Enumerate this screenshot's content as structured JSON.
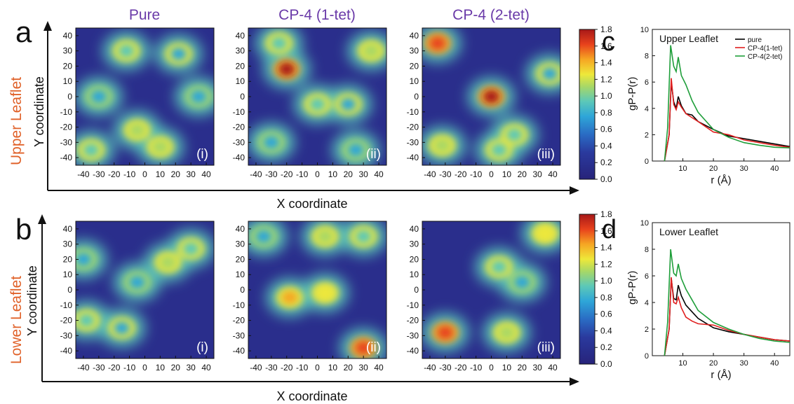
{
  "figure": {
    "panel_letters": [
      "a",
      "b",
      "c",
      "d"
    ],
    "column_titles": [
      "Pure",
      "CP-4 (1-tet)",
      "CP-4 (2-tet)"
    ],
    "row_labels": [
      "Upper Leaflet",
      "Lower Leaflet"
    ],
    "subpanel_tags": [
      "(i)",
      "(ii)",
      "(iii)"
    ],
    "y_axis_label": "Y coordinate",
    "x_axis_label": "X coordinate",
    "colors": {
      "title": "#6a3aa8",
      "row_label": "#e0622a",
      "pure": "#000000",
      "one_tet": "#e02020",
      "two_tet": "#1f9e3a"
    }
  },
  "heatmap_ticks": {
    "x": [
      "-40",
      "-30",
      "-20",
      "-10",
      "0",
      "10",
      "20",
      "30",
      "40"
    ],
    "y": [
      "40",
      "30",
      "20",
      "10",
      "0",
      "-10",
      "-20",
      "-30",
      "-40"
    ]
  },
  "colorbar": {
    "ticks": [
      "1.8",
      "1.6",
      "1.4",
      "1.2",
      "1.0",
      "0.8",
      "0.6",
      "0.4",
      "0.2",
      "0.0"
    ],
    "range": [
      0,
      1.8
    ]
  },
  "chart_data": [
    {
      "type": "heatmap",
      "panel": "a",
      "row": "Upper Leaflet",
      "xlim": [
        -45,
        45
      ],
      "ylim": [
        -45,
        45
      ],
      "maps": [
        {
          "title": "Pure",
          "tag": "(i)",
          "hotspots": [
            [
              -5,
              -22,
              0.95
            ],
            [
              10,
              -33,
              1.0
            ],
            [
              -35,
              -35,
              0.9
            ],
            [
              -12,
              30,
              0.8
            ],
            [
              22,
              28,
              0.7
            ],
            [
              35,
              0,
              0.6
            ],
            [
              -30,
              0,
              0.6
            ]
          ]
        },
        {
          "title": "CP-4 (1-tet)",
          "tag": "(ii)",
          "hotspots": [
            [
              -20,
              18,
              1.8
            ],
            [
              -25,
              35,
              0.9
            ],
            [
              35,
              30,
              1.0
            ],
            [
              0,
              -5,
              0.8
            ],
            [
              20,
              -5,
              0.7
            ],
            [
              -30,
              -30,
              0.6
            ],
            [
              25,
              -35,
              0.6
            ]
          ]
        },
        {
          "title": "CP-4 (2-tet)",
          "tag": "(iii)",
          "hotspots": [
            [
              -35,
              35,
              1.6
            ],
            [
              0,
              0,
              1.7
            ],
            [
              -32,
              -32,
              1.0
            ],
            [
              15,
              -25,
              0.9
            ],
            [
              38,
              15,
              0.7
            ],
            [
              5,
              -35,
              0.9
            ]
          ]
        }
      ]
    },
    {
      "type": "heatmap",
      "panel": "b",
      "row": "Lower Leaflet",
      "xlim": [
        -45,
        45
      ],
      "ylim": [
        -45,
        45
      ],
      "maps": [
        {
          "title": "Pure",
          "tag": "(i)",
          "hotspots": [
            [
              15,
              18,
              1.0
            ],
            [
              30,
              27,
              0.9
            ],
            [
              -38,
              -20,
              0.9
            ],
            [
              -15,
              -25,
              0.7
            ],
            [
              -5,
              5,
              0.6
            ],
            [
              -40,
              20,
              0.6
            ]
          ]
        },
        {
          "title": "CP-4 (1-tet)",
          "tag": "(ii)",
          "hotspots": [
            [
              -18,
              -5,
              1.3
            ],
            [
              5,
              -2,
              1.2
            ],
            [
              30,
              -38,
              1.5
            ],
            [
              5,
              35,
              1.0
            ],
            [
              30,
              35,
              0.9
            ],
            [
              -35,
              35,
              0.6
            ]
          ]
        },
        {
          "title": "CP-4 (2-tet)",
          "tag": "(iii)",
          "hotspots": [
            [
              -30,
              -28,
              1.5
            ],
            [
              10,
              -28,
              1.0
            ],
            [
              35,
              37,
              1.2
            ],
            [
              5,
              15,
              0.8
            ],
            [
              20,
              5,
              0.6
            ]
          ]
        }
      ]
    },
    {
      "type": "line",
      "panel": "c",
      "title": "Upper Leaflet",
      "xlabel": "r (Å)",
      "ylabel": "gP-P(r)",
      "xlim": [
        0,
        45
      ],
      "ylim": [
        0,
        10
      ],
      "xticks": [
        "10",
        "20",
        "30",
        "40"
      ],
      "yticks": [
        "0",
        "2",
        "4",
        "6",
        "8",
        "10"
      ],
      "series": [
        {
          "name": "pure",
          "color": "#000000",
          "points": [
            [
              4,
              0
            ],
            [
              5.5,
              2
            ],
            [
              6.2,
              6.0
            ],
            [
              7,
              4.5
            ],
            [
              7.8,
              4.0
            ],
            [
              8.5,
              4.9
            ],
            [
              9.5,
              4.2
            ],
            [
              11,
              3.6
            ],
            [
              13,
              3.5
            ],
            [
              15,
              3.0
            ],
            [
              20,
              2.4
            ],
            [
              25,
              1.9
            ],
            [
              30,
              1.7
            ],
            [
              35,
              1.5
            ],
            [
              40,
              1.3
            ],
            [
              45,
              1.1
            ]
          ]
        },
        {
          "name": "CP-4(1-tet)",
          "color": "#e02020",
          "points": [
            [
              4,
              0
            ],
            [
              5.5,
              2
            ],
            [
              6.2,
              6.3
            ],
            [
              7,
              4.3
            ],
            [
              7.8,
              3.9
            ],
            [
              8.5,
              4.5
            ],
            [
              9.5,
              4.1
            ],
            [
              11,
              3.6
            ],
            [
              13,
              3.3
            ],
            [
              15,
              3.0
            ],
            [
              20,
              2.2
            ],
            [
              25,
              2.0
            ],
            [
              30,
              1.6
            ],
            [
              35,
              1.4
            ],
            [
              40,
              1.2
            ],
            [
              45,
              1.05
            ]
          ]
        },
        {
          "name": "CP-4(2-tet)",
          "color": "#1f9e3a",
          "points": [
            [
              4,
              0
            ],
            [
              5,
              2.5
            ],
            [
              6,
              8.8
            ],
            [
              7,
              7.2
            ],
            [
              7.8,
              6.8
            ],
            [
              8.5,
              7.9
            ],
            [
              9.5,
              6.5
            ],
            [
              11,
              5.8
            ],
            [
              13,
              4.6
            ],
            [
              15,
              3.7
            ],
            [
              20,
              2.4
            ],
            [
              25,
              1.8
            ],
            [
              30,
              1.4
            ],
            [
              35,
              1.2
            ],
            [
              40,
              1.05
            ],
            [
              45,
              1.0
            ]
          ]
        }
      ]
    },
    {
      "type": "line",
      "panel": "d",
      "title": "Lower Leaflet",
      "xlabel": "r (Å)",
      "ylabel": "gP-P(r)",
      "xlim": [
        0,
        45
      ],
      "ylim": [
        0,
        10
      ],
      "xticks": [
        "10",
        "20",
        "30",
        "40"
      ],
      "yticks": [
        "0",
        "2",
        "4",
        "6",
        "8",
        "10"
      ],
      "series": [
        {
          "name": "pure",
          "color": "#000000",
          "points": [
            [
              4,
              0
            ],
            [
              5.5,
              2
            ],
            [
              6.2,
              5.8
            ],
            [
              7,
              4.3
            ],
            [
              7.8,
              4.2
            ],
            [
              8.5,
              5.3
            ],
            [
              9.5,
              4.5
            ],
            [
              11,
              3.8
            ],
            [
              13,
              3.3
            ],
            [
              15,
              2.8
            ],
            [
              20,
              2.1
            ],
            [
              25,
              1.8
            ],
            [
              30,
              1.6
            ],
            [
              35,
              1.4
            ],
            [
              40,
              1.2
            ],
            [
              45,
              1.1
            ]
          ]
        },
        {
          "name": "CP-4(1-tet)",
          "color": "#e02020",
          "points": [
            [
              4,
              0
            ],
            [
              5.5,
              2
            ],
            [
              6.2,
              5.9
            ],
            [
              7,
              4.0
            ],
            [
              7.8,
              3.9
            ],
            [
              8.5,
              4.4
            ],
            [
              9.5,
              3.6
            ],
            [
              11,
              2.9
            ],
            [
              13,
              2.6
            ],
            [
              15,
              2.4
            ],
            [
              20,
              2.3
            ],
            [
              25,
              1.9
            ],
            [
              30,
              1.6
            ],
            [
              35,
              1.4
            ],
            [
              40,
              1.2
            ],
            [
              45,
              1.1
            ]
          ]
        },
        {
          "name": "CP-4(2-tet)",
          "color": "#1f9e3a",
          "points": [
            [
              4,
              0
            ],
            [
              5,
              2.5
            ],
            [
              6,
              8.0
            ],
            [
              7,
              6.2
            ],
            [
              7.8,
              6.0
            ],
            [
              8.5,
              6.9
            ],
            [
              9.5,
              5.8
            ],
            [
              11,
              5.0
            ],
            [
              13,
              4.2
            ],
            [
              15,
              3.4
            ],
            [
              20,
              2.5
            ],
            [
              25,
              2.0
            ],
            [
              30,
              1.6
            ],
            [
              35,
              1.3
            ],
            [
              40,
              1.1
            ],
            [
              45,
              1.0
            ]
          ]
        }
      ]
    }
  ]
}
